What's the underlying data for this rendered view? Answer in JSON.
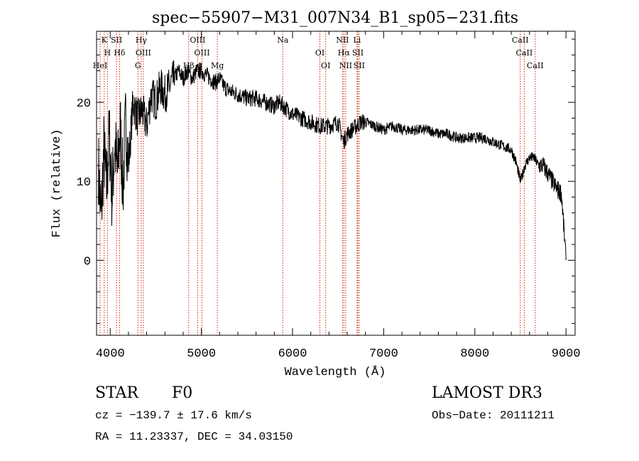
{
  "chart_data": {
    "type": "line",
    "title": "spec−55907−M31_007N34_B1_sp05−231.fits",
    "xlabel": "Wavelength (Å)",
    "ylabel": "Flux (relative)",
    "xlim": [
      3850,
      9100
    ],
    "ylim": [
      -9.5,
      29
    ],
    "xticks": [
      4000,
      5000,
      6000,
      7000,
      8000,
      9000
    ],
    "xtick_labels": [
      "4000",
      "5000",
      "6000",
      "7000",
      "8000",
      "9000"
    ],
    "yticks": [
      0,
      10,
      20
    ],
    "ytick_labels": [
      "0",
      "10",
      "20"
    ],
    "series": [
      {
        "name": "flux",
        "x": [
          3870,
          3900,
          3930,
          3960,
          3990,
          4020,
          4050,
          4080,
          4110,
          4140,
          4170,
          4200,
          4250,
          4300,
          4350,
          4400,
          4450,
          4500,
          4550,
          4600,
          4650,
          4700,
          4750,
          4800,
          4850,
          4900,
          4950,
          5000,
          5050,
          5100,
          5150,
          5200,
          5250,
          5300,
          5400,
          5500,
          5600,
          5700,
          5800,
          5850,
          5900,
          6000,
          6100,
          6200,
          6300,
          6400,
          6500,
          6560,
          6600,
          6650,
          6700,
          6750,
          6800,
          6900,
          7000,
          7100,
          7200,
          7300,
          7400,
          7500,
          7600,
          7700,
          7800,
          7900,
          8000,
          8100,
          8200,
          8300,
          8400,
          8450,
          8500,
          8550,
          8600,
          8650,
          8700,
          8750,
          8800,
          8850,
          8900,
          8950,
          9000
        ],
        "y": [
          12,
          5,
          14,
          9,
          16,
          8,
          15,
          11,
          17,
          9,
          18,
          12,
          20,
          18,
          19,
          17,
          21,
          20,
          22,
          21,
          22,
          23,
          24,
          23,
          24,
          23,
          24,
          24,
          23.5,
          23,
          22.5,
          23,
          22,
          21.5,
          21,
          20.5,
          20.5,
          20,
          19.5,
          20,
          19.5,
          18.5,
          18,
          17.5,
          17,
          17,
          17.5,
          15,
          16,
          16.5,
          17,
          17.5,
          17.5,
          17,
          16.5,
          17,
          16.5,
          16.5,
          16.5,
          16.5,
          16,
          16,
          15.5,
          15.5,
          15.5,
          15.5,
          15,
          14.5,
          14,
          12.5,
          10,
          12,
          13,
          13,
          12,
          12,
          11,
          10,
          9,
          8.5,
          0
        ]
      }
    ],
    "line_markers": [
      {
        "label": "K",
        "x": 3934
      },
      {
        "label": "H",
        "x": 3969
      },
      {
        "label": "HeI",
        "x": 3889
      },
      {
        "label": "SII",
        "x": 4069
      },
      {
        "label": "Hδ",
        "x": 4102
      },
      {
        "label": "G",
        "x": 4304
      },
      {
        "label": "Hγ",
        "x": 4340
      },
      {
        "label": "OIII",
        "x": 4363
      },
      {
        "label": "Hβ",
        "x": 4861
      },
      {
        "label": "OIII",
        "x": 4959
      },
      {
        "label": "OIII",
        "x": 5007
      },
      {
        "label": "Mg",
        "x": 5175
      },
      {
        "label": "Na",
        "x": 5893
      },
      {
        "label": "OI",
        "x": 6300
      },
      {
        "label": "OI",
        "x": 6364
      },
      {
        "label": "NII",
        "x": 6548
      },
      {
        "label": "Hα",
        "x": 6563
      },
      {
        "label": "NII",
        "x": 6583
      },
      {
        "label": "Li",
        "x": 6708
      },
      {
        "label": "SII",
        "x": 6716
      },
      {
        "label": "SII",
        "x": 6731
      },
      {
        "label": "CaII",
        "x": 8498
      },
      {
        "label": "CaII",
        "x": 8542
      },
      {
        "label": "CaII",
        "x": 8662
      }
    ]
  },
  "info": {
    "class_label": "STAR",
    "subclass_label": "F0",
    "survey": "LAMOST DR3",
    "cz_text": "cz = −139.7 ± 17.6 km/s",
    "obs_date": "Obs−Date: 20111211",
    "coords": "RA =  11.23337, DEC =  34.03150"
  },
  "colors": {
    "marker_line": "#cc2200",
    "axis": "#000000",
    "spectrum": "#000000"
  }
}
